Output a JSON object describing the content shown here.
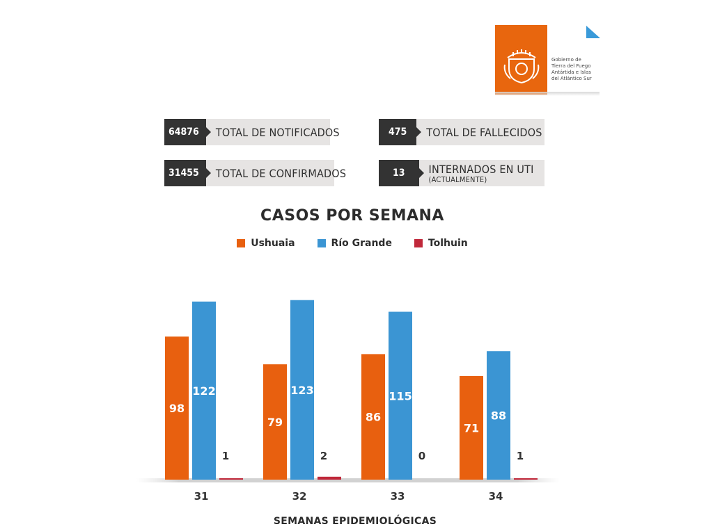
{
  "logo": {
    "emblem_icon": "tierra-del-fuego-shield-icon",
    "text_lines": [
      "Gobierno de",
      "Tierra del Fuego",
      "Antártida e Islas",
      "del Atlántico Sur"
    ],
    "brand_color": "#e8660e",
    "accent_color": "#3a9ad9"
  },
  "stats": {
    "notificados": {
      "value": "64876",
      "label": "TOTAL DE NOTIFICADOS"
    },
    "confirmados": {
      "value": "31455",
      "label": "TOTAL DE CONFIRMADOS"
    },
    "fallecidos": {
      "value": "475",
      "label": "TOTAL DE FALLECIDOS"
    },
    "internados": {
      "value": "13",
      "label": "INTERNADOS EN UTI",
      "sublabel": "(ACTUALMENTE)"
    }
  },
  "chart_data": {
    "type": "bar",
    "title": "CASOS POR SEMANA",
    "xlabel": "SEMANAS EPIDEMIOLÓGICAS",
    "ylabel": "",
    "categories": [
      "31",
      "32",
      "33",
      "34"
    ],
    "series": [
      {
        "name": "Ushuaia",
        "color": "#e8600f",
        "values": [
          98,
          79,
          86,
          71
        ]
      },
      {
        "name": "Río Grande",
        "color": "#3b95d3",
        "values": [
          122,
          123,
          115,
          88
        ]
      },
      {
        "name": "Tolhuin",
        "color": "#c0283a",
        "values": [
          1,
          2,
          0,
          1
        ]
      }
    ],
    "ylim": [
      0,
      125
    ],
    "grid": false,
    "legend_position": "top"
  }
}
